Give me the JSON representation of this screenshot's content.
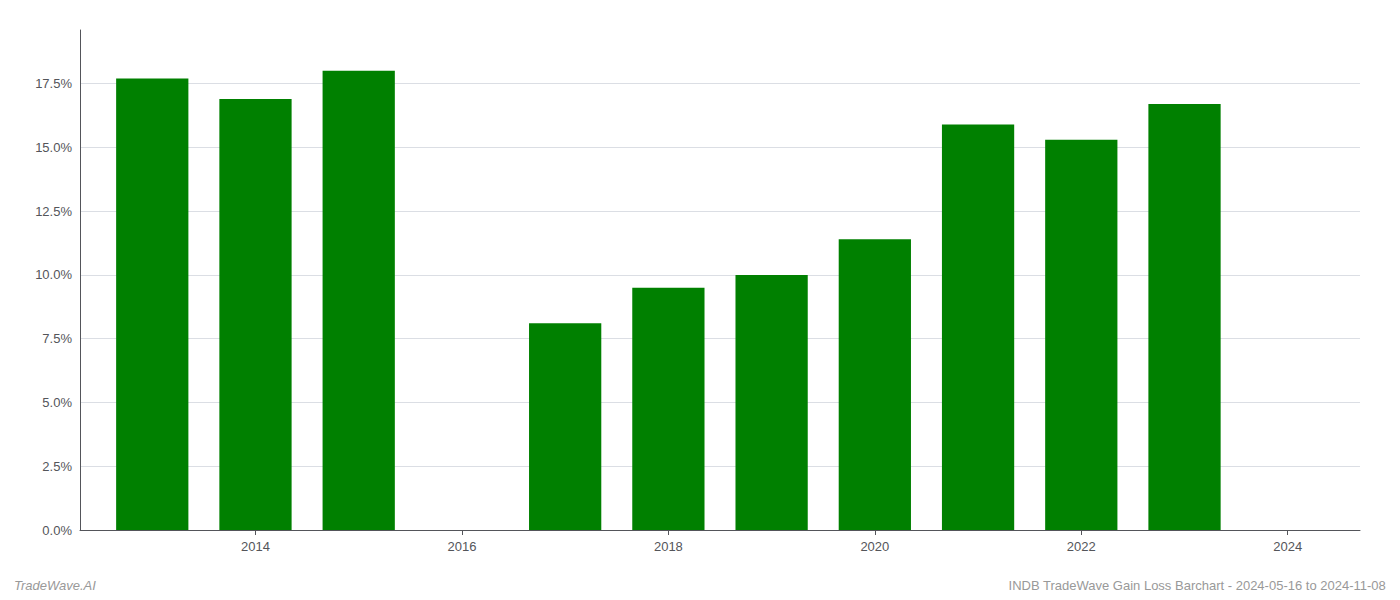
{
  "chart_data": {
    "type": "bar",
    "x": [
      2013,
      2014,
      2015,
      2017,
      2018,
      2019,
      2020,
      2021,
      2022,
      2023
    ],
    "values": [
      0.177,
      0.169,
      0.18,
      0.081,
      0.095,
      0.1,
      0.114,
      0.159,
      0.153,
      0.167
    ],
    "color": "#008000",
    "xlim": [
      2012.3,
      2024.7
    ],
    "xticks": [
      2014,
      2016,
      2018,
      2020,
      2022,
      2024
    ],
    "ylim": [
      0,
      0.196
    ],
    "yticks": [
      {
        "value": 0.0,
        "label": "0.0%"
      },
      {
        "value": 0.025,
        "label": "2.5%"
      },
      {
        "value": 0.05,
        "label": "5.0%"
      },
      {
        "value": 0.075,
        "label": "7.5%"
      },
      {
        "value": 0.1,
        "label": "10.0%"
      },
      {
        "value": 0.125,
        "label": "12.5%"
      },
      {
        "value": 0.15,
        "label": "15.0%"
      },
      {
        "value": 0.175,
        "label": "17.5%"
      }
    ],
    "grid": true,
    "annotations": [
      "TradeWave.AI",
      "INDB TradeWave Gain Loss Barchart - 2024-05-16 to 2024-11-08"
    ]
  }
}
